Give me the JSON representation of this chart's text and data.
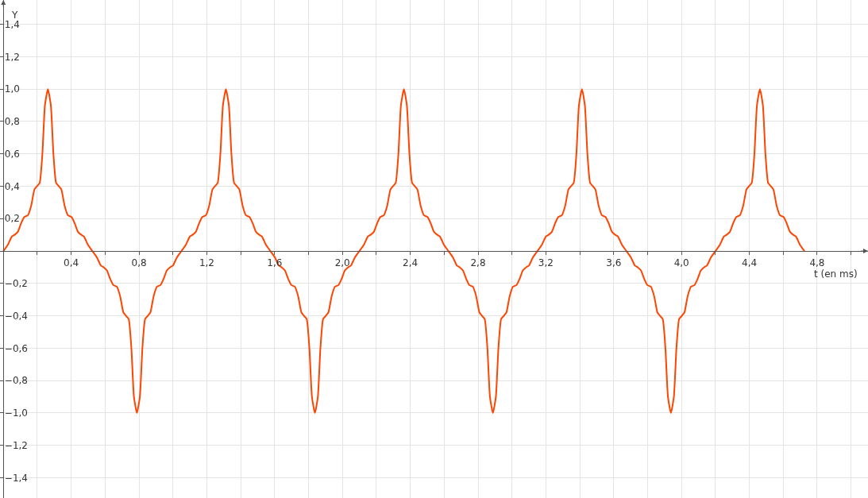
{
  "chart_data": {
    "type": "line",
    "xlabel": "t (en ms)",
    "ylabel": "Y",
    "grid": true,
    "legend": false,
    "marker": "none",
    "line_style": "solid",
    "xlim": [
      -0.02,
      5.1
    ],
    "ylim": [
      -1.525,
      1.55
    ],
    "xticks": [
      {
        "value": 0.2,
        "label": null
      },
      {
        "value": 0.4,
        "label": "0,4"
      },
      {
        "value": 0.6,
        "label": null
      },
      {
        "value": 0.8,
        "label": "0,8"
      },
      {
        "value": 1.0,
        "label": null
      },
      {
        "value": 1.2,
        "label": "1,2"
      },
      {
        "value": 1.4,
        "label": null
      },
      {
        "value": 1.6,
        "label": "1,6"
      },
      {
        "value": 1.8,
        "label": null
      },
      {
        "value": 2.0,
        "label": "2,0"
      },
      {
        "value": 2.2,
        "label": null
      },
      {
        "value": 2.4,
        "label": "2,4"
      },
      {
        "value": 2.6,
        "label": null
      },
      {
        "value": 2.8,
        "label": "2,8"
      },
      {
        "value": 3.0,
        "label": null
      },
      {
        "value": 3.2,
        "label": "3,2"
      },
      {
        "value": 3.4,
        "label": null
      },
      {
        "value": 3.6,
        "label": "3,6"
      },
      {
        "value": 3.8,
        "label": null
      },
      {
        "value": 4.0,
        "label": "4,0"
      },
      {
        "value": 4.2,
        "label": null
      },
      {
        "value": 4.4,
        "label": "4,4"
      },
      {
        "value": 4.6,
        "label": null
      },
      {
        "value": 4.8,
        "label": "4,8"
      },
      {
        "value": 5.0,
        "label": null
      }
    ],
    "yticks": [
      {
        "value": -1.4,
        "label": "−1,4"
      },
      {
        "value": -1.2,
        "label": "−1,2"
      },
      {
        "value": -1.0,
        "label": "−1,0"
      },
      {
        "value": -0.8,
        "label": "−0,8"
      },
      {
        "value": -0.6,
        "label": "−0,6"
      },
      {
        "value": -0.4,
        "label": "−0,4"
      },
      {
        "value": -0.2,
        "label": "−0,2"
      },
      {
        "value": 0.2,
        "label": "0,2"
      },
      {
        "value": 0.4,
        "label": "0,4"
      },
      {
        "value": 0.6,
        "label": "0,6"
      },
      {
        "value": 0.8,
        "label": "0,8"
      },
      {
        "value": 1.0,
        "label": "1,0"
      },
      {
        "value": 1.2,
        "label": "1,2"
      },
      {
        "value": 1.4,
        "label": "1,4"
      }
    ],
    "series": [
      {
        "color": "#ff4500",
        "x": [
          0,
          0.027,
          0.05,
          0.066,
          0.086,
          0.104,
          0.123,
          0.144,
          0.164,
          0.183,
          0.198,
          0.214,
          0.23,
          0.245,
          0.2625,
          0.28,
          0.295,
          0.311,
          0.327,
          0.342,
          0.361,
          0.381,
          0.402,
          0.421,
          0.439,
          0.459,
          0.475,
          0.498,
          0.525,
          0.552,
          0.575,
          0.591,
          0.611,
          0.629,
          0.648,
          0.669,
          0.689,
          0.708,
          0.723,
          0.739,
          0.755,
          0.77,
          0.7875,
          0.805,
          0.82,
          0.836,
          0.852,
          0.867,
          0.886,
          0.906,
          0.927,
          0.946,
          0.964,
          0.984,
          1.0,
          1.023,
          1.05,
          1.077,
          1.1,
          1.116,
          1.136,
          1.154,
          1.173,
          1.194,
          1.214,
          1.233,
          1.248,
          1.264,
          1.28,
          1.295,
          1.3125,
          1.33,
          1.345,
          1.361,
          1.377,
          1.392,
          1.411,
          1.431,
          1.452,
          1.471,
          1.489,
          1.509,
          1.525,
          1.548,
          1.575,
          1.602,
          1.625,
          1.641,
          1.661,
          1.679,
          1.698,
          1.719,
          1.739,
          1.758,
          1.773,
          1.789,
          1.805,
          1.82,
          1.8375,
          1.855,
          1.87,
          1.886,
          1.902,
          1.917,
          1.936,
          1.956,
          1.977,
          1.996,
          2.014,
          2.034,
          2.05,
          2.073,
          2.1,
          2.127,
          2.15,
          2.166,
          2.186,
          2.204,
          2.223,
          2.244,
          2.264,
          2.283,
          2.298,
          2.314,
          2.33,
          2.345,
          2.3625,
          2.38,
          2.395,
          2.411,
          2.427,
          2.442,
          2.461,
          2.481,
          2.502,
          2.521,
          2.539,
          2.559,
          2.575,
          2.598,
          2.625,
          2.652,
          2.675,
          2.691,
          2.711,
          2.729,
          2.748,
          2.769,
          2.789,
          2.808,
          2.823,
          2.839,
          2.855,
          2.87,
          2.8875,
          2.905,
          2.92,
          2.936,
          2.952,
          2.967,
          2.986,
          3.006,
          3.027,
          3.046,
          3.064,
          3.084,
          3.1,
          3.123,
          3.15,
          3.177,
          3.2,
          3.216,
          3.236,
          3.254,
          3.273,
          3.294,
          3.314,
          3.333,
          3.348,
          3.364,
          3.38,
          3.395,
          3.4125,
          3.43,
          3.445,
          3.461,
          3.477,
          3.492,
          3.511,
          3.531,
          3.552,
          3.571,
          3.589,
          3.609,
          3.625,
          3.648,
          3.675,
          3.702,
          3.725,
          3.741,
          3.761,
          3.779,
          3.798,
          3.819,
          3.839,
          3.858,
          3.873,
          3.889,
          3.905,
          3.92,
          3.9375,
          3.955,
          3.97,
          3.986,
          4.002,
          4.017,
          4.036,
          4.056,
          4.077,
          4.096,
          4.114,
          4.134,
          4.15,
          4.173,
          4.2,
          4.227,
          4.25,
          4.266,
          4.286,
          4.304,
          4.323,
          4.344,
          4.364,
          4.383,
          4.398,
          4.414,
          4.43,
          4.445,
          4.4625,
          4.48,
          4.495,
          4.511,
          4.527,
          4.542,
          4.561,
          4.581,
          4.602,
          4.621,
          4.639,
          4.659,
          4.675,
          4.698,
          4.725
        ],
        "values": [
          0,
          0.04,
          0.09,
          0.1,
          0.12,
          0.17,
          0.21,
          0.22,
          0.28,
          0.38,
          0.4,
          0.42,
          0.6,
          0.9,
          1,
          0.9,
          0.6,
          0.42,
          0.4,
          0.38,
          0.28,
          0.22,
          0.21,
          0.17,
          0.12,
          0.1,
          0.09,
          0.04,
          0,
          -0.04,
          -0.09,
          -0.1,
          -0.12,
          -0.17,
          -0.21,
          -0.22,
          -0.28,
          -0.38,
          -0.4,
          -0.42,
          -0.6,
          -0.9,
          -1,
          -0.9,
          -0.6,
          -0.42,
          -0.4,
          -0.38,
          -0.28,
          -0.22,
          -0.21,
          -0.17,
          -0.12,
          -0.1,
          -0.09,
          -0.04,
          0,
          0.04,
          0.09,
          0.1,
          0.12,
          0.17,
          0.21,
          0.22,
          0.28,
          0.38,
          0.4,
          0.42,
          0.6,
          0.9,
          1,
          0.9,
          0.6,
          0.42,
          0.4,
          0.38,
          0.28,
          0.22,
          0.21,
          0.17,
          0.12,
          0.1,
          0.09,
          0.04,
          0,
          -0.04,
          -0.09,
          -0.1,
          -0.12,
          -0.17,
          -0.21,
          -0.22,
          -0.28,
          -0.38,
          -0.4,
          -0.42,
          -0.6,
          -0.9,
          -1,
          -0.9,
          -0.6,
          -0.42,
          -0.4,
          -0.38,
          -0.28,
          -0.22,
          -0.21,
          -0.17,
          -0.12,
          -0.1,
          -0.09,
          -0.04,
          0,
          0.04,
          0.09,
          0.1,
          0.12,
          0.17,
          0.21,
          0.22,
          0.28,
          0.38,
          0.4,
          0.42,
          0.6,
          0.9,
          1,
          0.9,
          0.6,
          0.42,
          0.4,
          0.38,
          0.28,
          0.22,
          0.21,
          0.17,
          0.12,
          0.1,
          0.09,
          0.04,
          0,
          -0.04,
          -0.09,
          -0.1,
          -0.12,
          -0.17,
          -0.21,
          -0.22,
          -0.28,
          -0.38,
          -0.4,
          -0.42,
          -0.6,
          -0.9,
          -1,
          -0.9,
          -0.6,
          -0.42,
          -0.4,
          -0.38,
          -0.28,
          -0.22,
          -0.21,
          -0.17,
          -0.12,
          -0.1,
          -0.09,
          -0.04,
          0,
          0.04,
          0.09,
          0.1,
          0.12,
          0.17,
          0.21,
          0.22,
          0.28,
          0.38,
          0.4,
          0.42,
          0.6,
          0.9,
          1,
          0.9,
          0.6,
          0.42,
          0.4,
          0.38,
          0.28,
          0.22,
          0.21,
          0.17,
          0.12,
          0.1,
          0.09,
          0.04,
          0,
          -0.04,
          -0.09,
          -0.1,
          -0.12,
          -0.17,
          -0.21,
          -0.22,
          -0.28,
          -0.38,
          -0.4,
          -0.42,
          -0.6,
          -0.9,
          -1,
          -0.9,
          -0.6,
          -0.42,
          -0.4,
          -0.38,
          -0.28,
          -0.22,
          -0.21,
          -0.17,
          -0.12,
          -0.1,
          -0.09,
          -0.04,
          0,
          0.04,
          0.09,
          0.1,
          0.12,
          0.17,
          0.21,
          0.22,
          0.28,
          0.38,
          0.4,
          0.42,
          0.6,
          0.9,
          1,
          0.9,
          0.6,
          0.42,
          0.4,
          0.38,
          0.28,
          0.22,
          0.21,
          0.17,
          0.12,
          0.1,
          0.09,
          0.04,
          0
        ]
      }
    ]
  }
}
